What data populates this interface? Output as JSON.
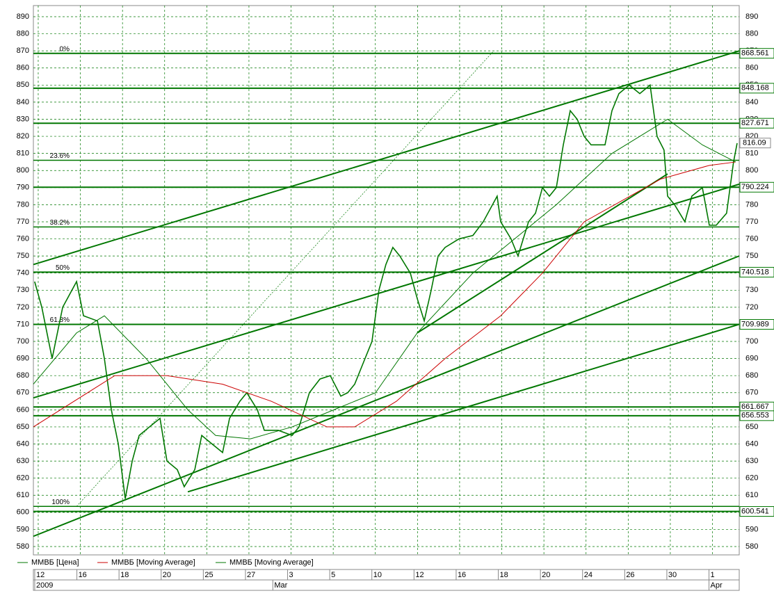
{
  "chart_data": {
    "type": "line",
    "ylim": [
      580,
      890
    ],
    "xlim": [
      -0.23,
      33.27
    ],
    "yticks": [
      580,
      590,
      600,
      610,
      620,
      630,
      640,
      650,
      660,
      670,
      680,
      690,
      700,
      710,
      720,
      730,
      740,
      750,
      760,
      770,
      780,
      790,
      800,
      810,
      820,
      830,
      840,
      850,
      860,
      870,
      880,
      890
    ],
    "grid": true,
    "xticks": [
      0,
      2,
      4,
      6,
      8,
      10,
      12,
      14,
      16,
      18,
      20,
      22,
      24,
      26,
      28,
      30,
      32
    ],
    "xtick_labels": [
      "12",
      "16",
      "18",
      "20",
      "25",
      "27",
      "3",
      "5",
      "10",
      "12",
      "16",
      "18",
      "20",
      "24",
      "26",
      "30",
      "1"
    ],
    "period_labels": [
      {
        "value": 0,
        "label": "2009"
      },
      {
        "value": 11.3,
        "label": "Mar"
      },
      {
        "value": 32,
        "label": "Apr"
      }
    ],
    "series": [
      {
        "name": "ММВБ [Цена]",
        "color": "#007700",
        "x": [
          -0.17,
          0.17,
          0.66,
          1.16,
          1.82,
          2.15,
          2.81,
          3.14,
          3.47,
          3.8,
          4.13,
          4.46,
          4.79,
          5.28,
          5.78,
          6.11,
          6.6,
          6.93,
          7.43,
          7.76,
          8.25,
          8.75,
          9.08,
          9.57,
          9.9,
          10.4,
          10.73,
          11.39,
          12.05,
          12.38,
          12.87,
          13.37,
          13.86,
          14.36,
          14.69,
          15.02,
          15.51,
          15.84,
          16.17,
          16.5,
          16.83,
          17.16,
          17.66,
          17.99,
          18.32,
          18.65,
          18.98,
          19.31,
          19.97,
          20.63,
          21.12,
          21.78,
          21.95,
          22.44,
          22.77,
          23.27,
          23.6,
          23.93,
          24.26,
          24.59,
          24.92,
          25.25,
          25.58,
          25.91,
          26.24,
          26.9,
          27.23,
          27.56,
          28.05,
          28.55,
          29.04,
          29.37,
          29.7,
          29.87,
          30.2,
          30.69,
          31.02,
          31.52,
          31.85,
          32.18,
          32.67,
          33.0,
          33.17
        ],
        "values": [
          735,
          720,
          690,
          720,
          735,
          715,
          712,
          690,
          660,
          640,
          608,
          630,
          645,
          650,
          655,
          630,
          625,
          615,
          625,
          645,
          640,
          635,
          655,
          665,
          670,
          660,
          648,
          648,
          645,
          650,
          670,
          678,
          680,
          668,
          670,
          675,
          690,
          700,
          730,
          745,
          755,
          750,
          740,
          725,
          712,
          730,
          750,
          755,
          760,
          762,
          770,
          785,
          770,
          760,
          750,
          770,
          775,
          790,
          785,
          790,
          815,
          835,
          830,
          820,
          815,
          815,
          835,
          845,
          850,
          845,
          850,
          820,
          812,
          785,
          780,
          770,
          785,
          790,
          768,
          768,
          775,
          805,
          816
        ]
      },
      {
        "name": "ММВБ [Moving Average]",
        "color": "#cc0000",
        "x": [
          -0.23,
          3.63,
          6.11,
          8.75,
          11.06,
          13.7,
          15.02,
          17.0,
          19.31,
          21.95,
          23.93,
          25.91,
          29.54,
          31.85,
          33.1
        ],
        "values": [
          650,
          680,
          680,
          675,
          665,
          650,
          650,
          665,
          690,
          715,
          740,
          770,
          795,
          803,
          805
        ]
      },
      {
        "name": "ММВБ [Moving Average]",
        "color": "#007700",
        "x": [
          -0.23,
          1.82,
          3.14,
          5.12,
          7.1,
          8.42,
          10.07,
          12.05,
          14.03,
          16.01,
          17.99,
          20.63,
          22.61,
          24.59,
          27.23,
          29.87,
          31.52,
          33.1
        ],
        "values": [
          675,
          705,
          715,
          690,
          660,
          645,
          643,
          650,
          660,
          670,
          705,
          740,
          760,
          780,
          810,
          830,
          815,
          805
        ]
      }
    ],
    "levels": [
      868.561,
      848.168,
      827.671,
      790.224,
      740.518,
      709.989,
      661.667,
      656.553,
      600.541
    ],
    "last_price": 816.09,
    "fib_levels": [
      {
        "value": 868.561,
        "label": "0%"
      },
      {
        "value": 806,
        "label": "23.6%"
      },
      {
        "value": 767,
        "label": "38.2%"
      },
      {
        "value": 740.518,
        "label": "50%"
      },
      {
        "value": 709.989,
        "label": "61.8%"
      },
      {
        "value": 603.5,
        "label": "100%"
      }
    ],
    "trend_lines": [
      {
        "x": [
          -0.23,
          33.27
        ],
        "values": [
          745,
          870
        ]
      },
      {
        "x": [
          -0.23,
          33.27
        ],
        "values": [
          667,
          792
        ]
      },
      {
        "x": [
          -0.23,
          33.27
        ],
        "values": [
          586,
          750
        ]
      },
      {
        "x": [
          7.1,
          33.27
        ],
        "values": [
          612,
          710
        ]
      },
      {
        "x": [
          17.99,
          29.87
        ],
        "values": [
          705,
          798
        ]
      }
    ],
    "fib_diagonal": {
      "x": [
        1.82,
        21.62
      ],
      "values": [
        603.5,
        870
      ]
    }
  }
}
